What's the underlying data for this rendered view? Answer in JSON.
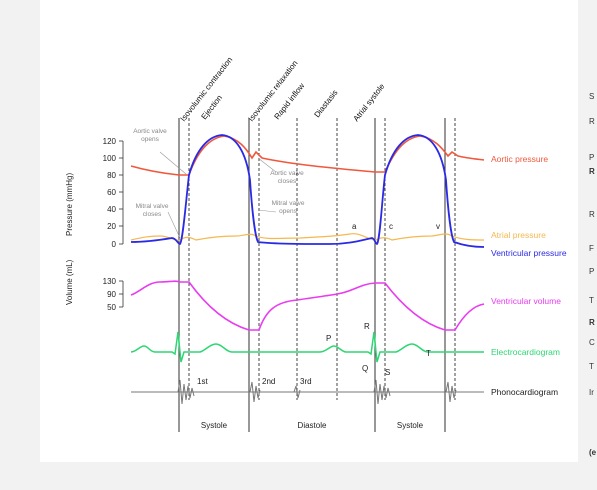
{
  "phases": {
    "isovolumic_contraction": "Isovolumic contraction",
    "ejection": "Ejection",
    "isovolumic_relaxation": "Isovolumic relaxation",
    "rapid_inflow": "Rapid inflow",
    "diastasis": "Diastasis",
    "atrial_systole": "Atrial systole"
  },
  "axes": {
    "pressure_label": "Pressure (mmHg)",
    "pressure_ticks": [
      "120",
      "100",
      "80",
      "60",
      "40",
      "20",
      "0"
    ],
    "volume_label": "Volume (mL)",
    "volume_ticks": [
      "130",
      "90",
      "50"
    ]
  },
  "annotations": {
    "aortic_valve_opens": [
      "Aortic valve",
      "opens"
    ],
    "aortic_valve_closes": [
      "Aortic valve",
      "closes"
    ],
    "mitral_valve_closes": [
      "Mitral valve",
      "closes"
    ],
    "mitral_valve_opens": [
      "Mitral valve",
      "opens"
    ],
    "wave_a": "a",
    "wave_c": "c",
    "wave_v": "v",
    "ecg_p": "P",
    "ecg_q": "Q",
    "ecg_r": "R",
    "ecg_s": "S",
    "ecg_t": "T",
    "heart_sound_1": "1st",
    "heart_sound_2": "2nd",
    "heart_sound_3": "3rd"
  },
  "legend": {
    "aortic_pressure": "Aortic pressure",
    "atrial_pressure": "Atrial pressure",
    "ventricular_pressure": "Ventricular pressure",
    "ventricular_volume": "Ventricular volume",
    "electrocardiogram": "Electrocardiogram",
    "phonocardiogram": "Phonocardiogram"
  },
  "cycle_labels": {
    "systole_1": "Systole",
    "diastole": "Diastole",
    "systole_2": "Systole"
  },
  "sidebar": {
    "items": [
      "S",
      "R",
      "P",
      "R",
      "R",
      "F",
      "P",
      "T",
      "R",
      "C",
      "T",
      "Ir",
      "(e"
    ]
  },
  "colors": {
    "aortic": "#f0583c",
    "atrial": "#f5b84e",
    "ventricular_pressure": "#2a2ae6",
    "ventricular_volume": "#e83cf0",
    "ecg": "#2ed673",
    "phono": "#777777",
    "annotation": "#888888"
  }
}
